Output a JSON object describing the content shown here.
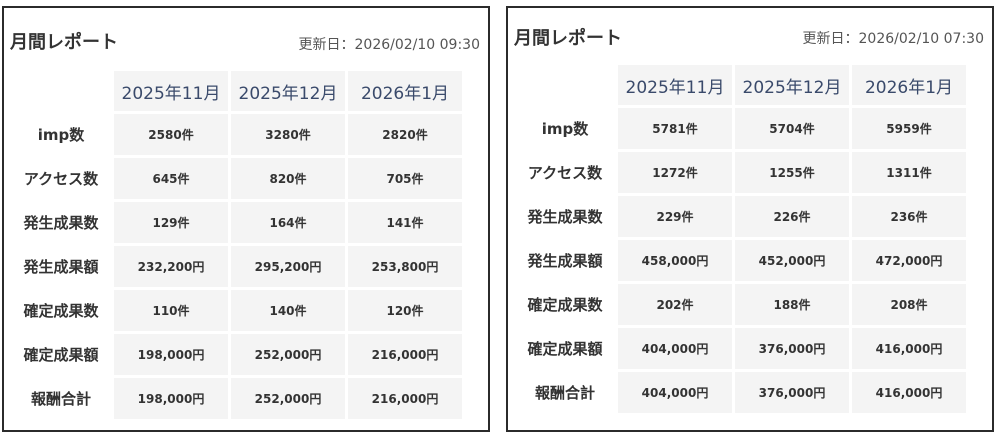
{
  "reports": [
    {
      "title": "月間レポート",
      "updated": "更新日：2026/02/10 09:30",
      "columns": [
        "2025年11月",
        "2025年12月",
        "2026年1月"
      ],
      "rows": [
        {
          "label": "imp数",
          "values": [
            "2580件",
            "3280件",
            "2820件"
          ]
        },
        {
          "label": "アクセス数",
          "values": [
            "645件",
            "820件",
            "705件"
          ]
        },
        {
          "label": "発生成果数",
          "values": [
            "129件",
            "164件",
            "141件"
          ]
        },
        {
          "label": "発生成果額",
          "values": [
            "232,200円",
            "295,200円",
            "253,800円"
          ]
        },
        {
          "label": "確定成果数",
          "values": [
            "110件",
            "140件",
            "120件"
          ]
        },
        {
          "label": "確定成果額",
          "values": [
            "198,000円",
            "252,000円",
            "216,000円"
          ]
        },
        {
          "label": "報酬合計",
          "values": [
            "198,000円",
            "252,000円",
            "216,000円"
          ]
        }
      ]
    },
    {
      "title": "月間レポート",
      "updated": "更新日：2026/02/10 07:30",
      "columns": [
        "2025年11月",
        "2025年12月",
        "2026年1月"
      ],
      "rows": [
        {
          "label": "imp数",
          "values": [
            "5781件",
            "5704件",
            "5959件"
          ]
        },
        {
          "label": "アクセス数",
          "values": [
            "1272件",
            "1255件",
            "1311件"
          ]
        },
        {
          "label": "発生成果数",
          "values": [
            "229件",
            "226件",
            "236件"
          ]
        },
        {
          "label": "発生成果額",
          "values": [
            "458,000円",
            "452,000円",
            "472,000円"
          ]
        },
        {
          "label": "確定成果数",
          "values": [
            "202件",
            "188件",
            "208件"
          ]
        },
        {
          "label": "確定成果額",
          "values": [
            "404,000円",
            "376,000円",
            "416,000円"
          ]
        },
        {
          "label": "報酬合計",
          "values": [
            "404,000円",
            "376,000円",
            "416,000円"
          ]
        }
      ]
    }
  ]
}
